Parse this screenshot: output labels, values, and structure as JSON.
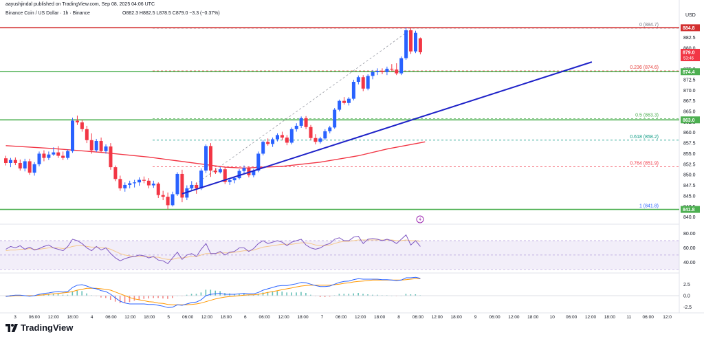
{
  "header": {
    "published": "aayushjindal published on TradingView.com, Sep 08, 2025 04:06 UTC",
    "symbol": "Binance Coin / US Dollar · 1h · Binance",
    "ohlc": "O882.3  H882.5  L878.5  C879.0  −3.3 (−0.37%)"
  },
  "brand": {
    "name": "TradingView"
  },
  "chart_data": {
    "type": "candlestick",
    "currency": "USD",
    "price_axis_ticks": [
      "882.5",
      "880.0",
      "877.5",
      "875.0",
      "872.5",
      "870.0",
      "867.5",
      "865.0",
      "862.5",
      "860.0",
      "857.5",
      "855.0",
      "852.5",
      "850.0",
      "847.5",
      "845.0",
      "842.5",
      "840.0"
    ],
    "price_ticks_values": [
      882.5,
      880,
      877.5,
      875,
      872.5,
      870,
      867.5,
      865,
      862.5,
      860,
      857.5,
      855,
      852.5,
      850,
      847.5,
      845,
      842.5,
      840
    ],
    "price_range": [
      838.8,
      887.3
    ],
    "time_axis_labels": [
      "3",
      "06:00",
      "12:00",
      "18:00",
      "4",
      "06:00",
      "12:00",
      "18:00",
      "5",
      "06:00",
      "12:00",
      "18:00",
      "6",
      "06:00",
      "12:00",
      "18:00",
      "7",
      "06:00",
      "12:00",
      "18:00",
      "8",
      "06:00",
      "12:00",
      "18:00",
      "9",
      "06:00",
      "12:00",
      "18:00",
      "10",
      "06:00",
      "12:00",
      "18:00",
      "11",
      "06:00",
      "12:0"
    ],
    "candles": [
      [
        853.9,
        854.5,
        852.2,
        852.8
      ],
      [
        852.8,
        854.0,
        851.8,
        853.5
      ],
      [
        853.5,
        854.1,
        852.3,
        852.8
      ],
      [
        852.8,
        853.6,
        851.0,
        851.5
      ],
      [
        851.5,
        853.8,
        850.8,
        853.2
      ],
      [
        853.2,
        853.8,
        850.0,
        850.5
      ],
      [
        850.5,
        853.0,
        849.8,
        852.5
      ],
      [
        852.5,
        855.5,
        852.0,
        855.0
      ],
      [
        855.0,
        855.8,
        853.2,
        854.0
      ],
      [
        854.0,
        855.5,
        853.5,
        854.8
      ],
      [
        854.8,
        856.5,
        854.5,
        855.3
      ],
      [
        855.3,
        856.8,
        854.0,
        854.5
      ],
      [
        854.5,
        855.5,
        853.5,
        854.0
      ],
      [
        854.0,
        856.0,
        853.6,
        855.6
      ],
      [
        855.6,
        863.5,
        855.2,
        862.8
      ],
      [
        862.8,
        864.0,
        861.8,
        862.4
      ],
      [
        862.4,
        863.0,
        860.2,
        860.8
      ],
      [
        860.8,
        861.6,
        857.5,
        858.2
      ],
      [
        858.2,
        859.8,
        855.0,
        855.8
      ],
      [
        855.8,
        858.5,
        855.4,
        858.0
      ],
      [
        858.0,
        858.8,
        855.2,
        855.6
      ],
      [
        855.6,
        857.2,
        855.0,
        856.7
      ],
      [
        856.7,
        857.5,
        851.2,
        851.8
      ],
      [
        851.8,
        852.2,
        848.5,
        849.0
      ],
      [
        849.0,
        849.8,
        846.2,
        846.8
      ],
      [
        846.8,
        848.2,
        846.0,
        847.6
      ],
      [
        847.6,
        848.6,
        846.8,
        848.0
      ],
      [
        848.0,
        848.8,
        847.0,
        848.2
      ],
      [
        848.2,
        849.4,
        847.4,
        848.8
      ],
      [
        848.8,
        849.6,
        848.0,
        848.6
      ],
      [
        848.6,
        849.2,
        846.8,
        847.5
      ],
      [
        847.5,
        848.6,
        846.9,
        847.9
      ],
      [
        847.9,
        848.2,
        844.5,
        845.2
      ],
      [
        845.2,
        846.2,
        844.0,
        844.8
      ],
      [
        844.8,
        845.8,
        841.8,
        842.8
      ],
      [
        842.8,
        846.0,
        842.5,
        845.4
      ],
      [
        845.4,
        850.6,
        845.0,
        850.2
      ],
      [
        850.2,
        851.2,
        843.5,
        844.6
      ],
      [
        844.6,
        847.5,
        844.0,
        846.8
      ],
      [
        846.8,
        848.5,
        846.2,
        847.6
      ],
      [
        847.6,
        848.2,
        845.5,
        846.8
      ],
      [
        846.8,
        851.5,
        846.4,
        851.0
      ],
      [
        851.0,
        857.2,
        850.4,
        856.8
      ],
      [
        856.8,
        857.5,
        849.5,
        851.0
      ],
      [
        851.0,
        851.6,
        850.2,
        850.6
      ],
      [
        850.6,
        851.8,
        850.3,
        851.3
      ],
      [
        851.3,
        851.8,
        847.8,
        848.3
      ],
      [
        848.3,
        849.2,
        847.6,
        848.7
      ],
      [
        848.7,
        849.6,
        848.0,
        849.2
      ],
      [
        849.2,
        851.3,
        848.9,
        850.9
      ],
      [
        850.9,
        852.2,
        850.4,
        851.6
      ],
      [
        851.6,
        852.0,
        849.4,
        849.9
      ],
      [
        849.9,
        851.4,
        849.4,
        851.0
      ],
      [
        851.0,
        855.5,
        850.6,
        855.0
      ],
      [
        855.0,
        858.2,
        854.6,
        857.8
      ],
      [
        857.8,
        858.6,
        856.9,
        857.3
      ],
      [
        857.3,
        858.8,
        856.6,
        858.4
      ],
      [
        858.4,
        859.8,
        857.9,
        859.4
      ],
      [
        859.4,
        860.2,
        858.2,
        858.8
      ],
      [
        858.8,
        859.4,
        857.0,
        857.6
      ],
      [
        857.6,
        861.2,
        857.2,
        860.8
      ],
      [
        860.8,
        862.2,
        860.2,
        861.6
      ],
      [
        861.6,
        863.8,
        861.1,
        863.4
      ],
      [
        863.4,
        863.9,
        860.8,
        861.3
      ],
      [
        861.3,
        861.8,
        858.2,
        858.7
      ],
      [
        858.7,
        859.6,
        857.2,
        857.8
      ],
      [
        857.8,
        859.0,
        857.4,
        858.6
      ],
      [
        858.6,
        860.8,
        858.2,
        860.3
      ],
      [
        860.3,
        861.6,
        859.8,
        861.2
      ],
      [
        861.2,
        865.8,
        860.9,
        865.4
      ],
      [
        865.4,
        867.8,
        865.0,
        867.5
      ],
      [
        867.5,
        868.4,
        866.6,
        867.0
      ],
      [
        867.0,
        868.4,
        866.4,
        868.0
      ],
      [
        868.0,
        872.5,
        867.6,
        872.0
      ],
      [
        872.0,
        873.5,
        871.4,
        873.1
      ],
      [
        873.1,
        873.6,
        869.8,
        870.4
      ],
      [
        870.4,
        873.8,
        870.0,
        873.4
      ],
      [
        873.4,
        874.8,
        872.6,
        874.3
      ],
      [
        874.3,
        875.2,
        873.6,
        874.6
      ],
      [
        874.6,
        875.2,
        873.8,
        874.3
      ],
      [
        874.3,
        875.6,
        873.6,
        875.1
      ],
      [
        875.1,
        876.2,
        874.5,
        874.9
      ],
      [
        874.9,
        876.4,
        873.6,
        874.0
      ],
      [
        874.0,
        878.0,
        873.6,
        877.6
      ],
      [
        877.6,
        884.8,
        877.2,
        884.2
      ],
      [
        884.2,
        884.7,
        878.6,
        879.2
      ],
      [
        879.2,
        884.1,
        878.8,
        883.6
      ],
      [
        882.3,
        882.5,
        878.5,
        879.0
      ]
    ],
    "candles_format": "[open, high, low, close]",
    "moving_average": [
      [
        0,
        856.9
      ],
      [
        10,
        856.2
      ],
      [
        20,
        855.3
      ],
      [
        30,
        854.2
      ],
      [
        40,
        852.7
      ],
      [
        46,
        851.8
      ],
      [
        50,
        851.6
      ],
      [
        58,
        852.0
      ],
      [
        66,
        853.0
      ],
      [
        74,
        854.5
      ],
      [
        80,
        856.1
      ],
      [
        88,
        857.8
      ]
    ],
    "horizontal_levels": [
      {
        "value": 884.8,
        "label": "884.8",
        "color": "#d32f2f"
      },
      {
        "value": 874.4,
        "label": "874.4",
        "color": "#4caf50"
      },
      {
        "value": 863.0,
        "label": "863.0",
        "color": "#4caf50"
      },
      {
        "value": 841.8,
        "label": "841.8",
        "color": "#4caf50"
      }
    ],
    "price_badges": [
      {
        "value": 879.0,
        "label": "879.0",
        "sublabel": "53:46",
        "color": "#f23645"
      }
    ],
    "fib_levels": [
      {
        "ratio": "0",
        "value": 884.7,
        "label": "0 (884.7)",
        "color": "#787b86"
      },
      {
        "ratio": "0.236",
        "value": 874.6,
        "label": "0.236 (874.6)",
        "color": "#e53935"
      },
      {
        "ratio": "0.5",
        "value": 863.3,
        "label": "0.5 (863.3)",
        "color": "#4caf50"
      },
      {
        "ratio": "0.618",
        "value": 858.2,
        "label": "0.618 (858.2)",
        "color": "#089981"
      },
      {
        "ratio": "0.764",
        "value": 851.9,
        "label": "0.764 (851.9)",
        "color": "#f23645"
      },
      {
        "ratio": "1",
        "value": 841.8,
        "label": "1 (841.8)",
        "color": "#2962ff"
      }
    ],
    "trendline": {
      "from": [
        37,
        845.5
      ],
      "to": [
        123,
        876.7
      ],
      "color": "#1e22c8"
    },
    "fib_trend": {
      "from": [
        37,
        845.5
      ],
      "to": [
        85,
        884.4
      ]
    },
    "rsi": {
      "ticks": [
        "80.00",
        "60.00",
        "40.00"
      ],
      "tick_values": [
        80,
        60,
        40
      ],
      "range": [
        26,
        92
      ],
      "band": [
        30,
        70
      ],
      "values": [
        58,
        62,
        60,
        63,
        58,
        61,
        57,
        59,
        62,
        64,
        60,
        58,
        56,
        62,
        72,
        70,
        66,
        60,
        56,
        62,
        57,
        60,
        52,
        46,
        42,
        45,
        47,
        48,
        50,
        49,
        46,
        48,
        43,
        42,
        38,
        46,
        54,
        44,
        50,
        52,
        48,
        58,
        66,
        52,
        52,
        55,
        50,
        54,
        55,
        60,
        60,
        55,
        59,
        66,
        70,
        66,
        68,
        70,
        68,
        63,
        68,
        70,
        72,
        64,
        60,
        58,
        60,
        64,
        66,
        72,
        74,
        70,
        70,
        75,
        76,
        66,
        72,
        73,
        72,
        70,
        72,
        70,
        66,
        72,
        78,
        64,
        70,
        62
      ],
      "signal": [
        56,
        57,
        57,
        58,
        58,
        59,
        58,
        58,
        59,
        60,
        60,
        60,
        59,
        60,
        62,
        63,
        63,
        62,
        61,
        61,
        60,
        60,
        58,
        55,
        52,
        50,
        49,
        48,
        48,
        48,
        48,
        47,
        47,
        45,
        44,
        44,
        46,
        46,
        47,
        48,
        48,
        50,
        52,
        52,
        52,
        53,
        53,
        53,
        54,
        55,
        56,
        56,
        57,
        59,
        61,
        62,
        63,
        64,
        65,
        65,
        65,
        66,
        67,
        67,
        66,
        64,
        63,
        63,
        64,
        66,
        68,
        69,
        69,
        70,
        71,
        71,
        71,
        71,
        71,
        71,
        71,
        71,
        70,
        70,
        71,
        70,
        70,
        69
      ]
    },
    "macd": {
      "ticks": [
        "2.5",
        "0.0",
        "-2.5"
      ],
      "tick_values": [
        2.5,
        0,
        -2.5
      ],
      "range": [
        -3.6,
        4.8
      ],
      "macd": [
        -0.2,
        0.0,
        0.1,
        0.1,
        0.0,
        -0.1,
        0.0,
        0.3,
        0.5,
        0.6,
        0.8,
        0.9,
        0.8,
        0.9,
        1.8,
        2.3,
        2.4,
        2.1,
        1.7,
        1.5,
        1.1,
        0.9,
        0.3,
        -0.5,
        -1.2,
        -1.6,
        -1.8,
        -1.8,
        -1.8,
        -1.8,
        -1.9,
        -1.9,
        -2.1,
        -2.3,
        -2.6,
        -2.5,
        -2.0,
        -2.1,
        -1.8,
        -1.5,
        -1.4,
        -0.9,
        0.0,
        0.3,
        0.4,
        0.5,
        0.3,
        0.3,
        0.3,
        0.4,
        0.5,
        0.4,
        0.4,
        0.7,
        1.2,
        1.5,
        1.8,
        2.1,
        2.2,
        2.2,
        2.4,
        2.6,
        2.9,
        2.8,
        2.5,
        2.2,
        2.0,
        2.0,
        2.1,
        2.5,
        2.9,
        3.1,
        3.2,
        3.5,
        3.7,
        3.6,
        3.6,
        3.6,
        3.6,
        3.5,
        3.5,
        3.4,
        3.3,
        3.4,
        3.9,
        3.9,
        4.0,
        3.8
      ],
      "signal": [
        -0.1,
        -0.1,
        0.0,
        0.0,
        0.0,
        0.0,
        0.0,
        0.1,
        0.2,
        0.3,
        0.4,
        0.5,
        0.6,
        0.7,
        0.9,
        1.2,
        1.4,
        1.6,
        1.6,
        1.6,
        1.5,
        1.4,
        1.2,
        0.8,
        0.4,
        0.0,
        -0.4,
        -0.7,
        -0.9,
        -1.1,
        -1.3,
        -1.4,
        -1.6,
        -1.7,
        -1.9,
        -2.0,
        -2.0,
        -2.0,
        -2.0,
        -1.9,
        -1.8,
        -1.6,
        -1.3,
        -1.0,
        -0.7,
        -0.5,
        -0.3,
        -0.2,
        -0.1,
        0.0,
        0.1,
        0.2,
        0.2,
        0.3,
        0.5,
        0.7,
        0.9,
        1.1,
        1.3,
        1.5,
        1.7,
        1.9,
        2.1,
        2.2,
        2.3,
        2.3,
        2.3,
        2.3,
        2.3,
        2.4,
        2.5,
        2.7,
        2.8,
        3.0,
        3.1,
        3.2,
        3.3,
        3.4,
        3.4,
        3.4,
        3.4,
        3.4,
        3.4,
        3.4,
        3.5,
        3.6,
        3.7,
        3.7
      ]
    }
  }
}
